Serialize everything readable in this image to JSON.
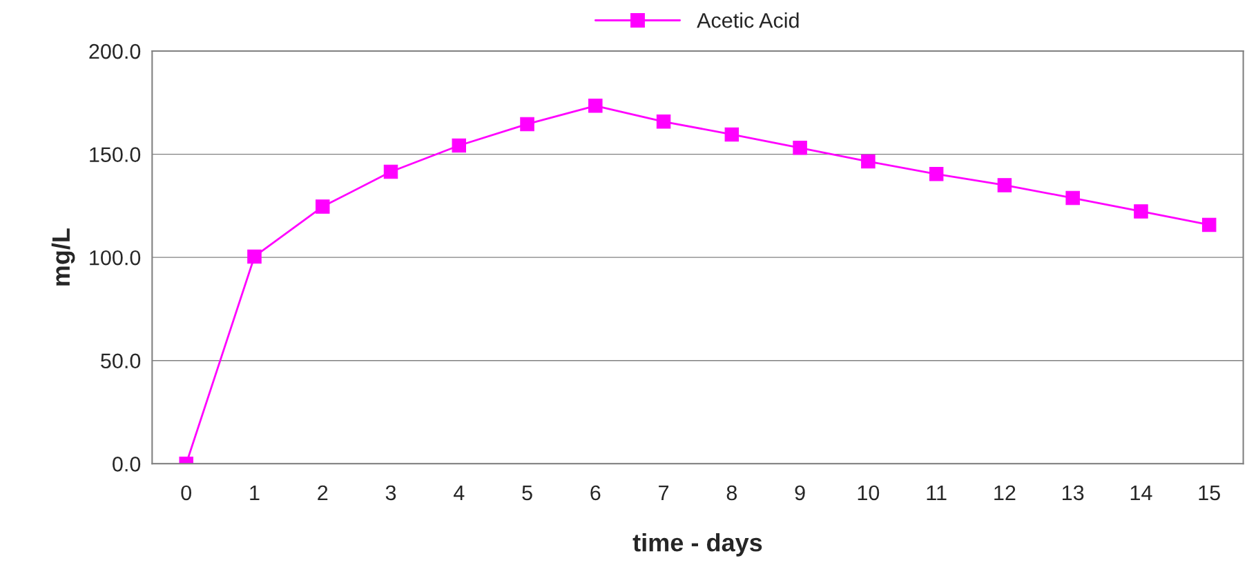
{
  "chart_data": {
    "type": "line",
    "xlabel": "time - days",
    "ylabel": "mg/L",
    "categories": [
      "0",
      "1",
      "2",
      "3",
      "4",
      "5",
      "6",
      "7",
      "8",
      "9",
      "10",
      "11",
      "12",
      "13",
      "14",
      "15"
    ],
    "series": [
      {
        "name": "Acetic Acid",
        "color": "#ff00ff",
        "values": [
          0,
          100.4,
          124.6,
          141.5,
          154.2,
          164.6,
          173.5,
          165.8,
          159.6,
          153.1,
          146.5,
          140.4,
          135,
          128.8,
          122.3,
          115.8
        ]
      }
    ],
    "ylim": [
      0,
      200
    ],
    "yticks": [
      {
        "value": 0,
        "label": "0.0"
      },
      {
        "value": 50,
        "label": "50.0"
      },
      {
        "value": 100,
        "label": "100.0"
      },
      {
        "value": 150,
        "label": "150.0"
      },
      {
        "value": 200,
        "label": "200.0"
      }
    ],
    "grid": "y",
    "legend": "top",
    "marker": "square",
    "line_style": "solid"
  }
}
